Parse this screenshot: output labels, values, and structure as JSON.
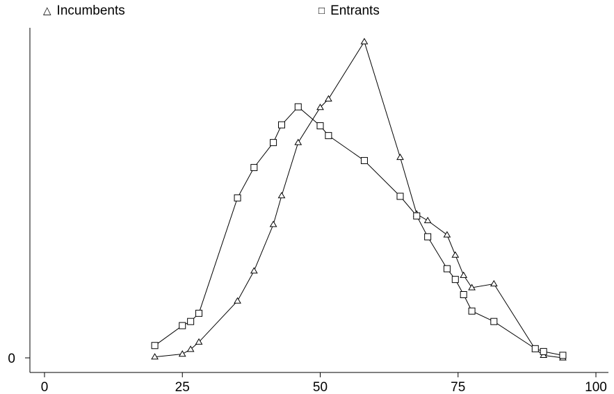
{
  "legend": [
    {
      "label": "Incumbents",
      "icon": "triangle-marker-icon"
    },
    {
      "label": "Entrants",
      "icon": "square-marker-icon"
    }
  ],
  "chart_data": {
    "type": "line",
    "title": "",
    "xlabel": "",
    "ylabel": "",
    "xlim": [
      0,
      100
    ],
    "ylim": [
      0,
      100
    ],
    "x_ticks": [
      0,
      25,
      50,
      75,
      100
    ],
    "x_tick_labels": [
      "0",
      "25",
      "50",
      "75",
      "100"
    ],
    "y_ticks": [
      0
    ],
    "y_tick_labels": [
      "0"
    ],
    "grid": false,
    "legend_position": "top",
    "series": [
      {
        "name": "Incumbents",
        "marker": "triangle",
        "color": "#000000",
        "points": [
          [
            20,
            0.3
          ],
          [
            25,
            1.2
          ],
          [
            26.5,
            2.7
          ],
          [
            28,
            5.0
          ],
          [
            35,
            18.0
          ],
          [
            38,
            27.5
          ],
          [
            41.5,
            42.2
          ],
          [
            43,
            51.3
          ],
          [
            46,
            68.1
          ],
          [
            50,
            79.2
          ],
          [
            51.5,
            81.9
          ],
          [
            58,
            100.0
          ],
          [
            64.5,
            63.4
          ],
          [
            67.5,
            45.5
          ],
          [
            69.5,
            43.4
          ],
          [
            73,
            38.9
          ],
          [
            74.5,
            32.5
          ],
          [
            76,
            26.1
          ],
          [
            77.5,
            22.2
          ],
          [
            81.5,
            23.4
          ],
          [
            89,
            2.7
          ],
          [
            90.5,
            0.8
          ],
          [
            94,
            0.0
          ]
        ]
      },
      {
        "name": "Entrants",
        "marker": "square",
        "color": "#000000",
        "points": [
          [
            20,
            3.9
          ],
          [
            25,
            10.2
          ],
          [
            26.5,
            11.5
          ],
          [
            28,
            14.1
          ],
          [
            35,
            50.6
          ],
          [
            38,
            60.2
          ],
          [
            41.5,
            68.1
          ],
          [
            43,
            73.7
          ],
          [
            46,
            79.4
          ],
          [
            50,
            73.4
          ],
          [
            51.5,
            70.3
          ],
          [
            58,
            62.4
          ],
          [
            64.5,
            51.1
          ],
          [
            67.5,
            44.9
          ],
          [
            69.5,
            38.3
          ],
          [
            73,
            28.2
          ],
          [
            74.5,
            24.8
          ],
          [
            76,
            20.0
          ],
          [
            77.5,
            14.8
          ],
          [
            81.5,
            11.5
          ],
          [
            89,
            2.9
          ],
          [
            90.5,
            2.0
          ],
          [
            94,
            0.8
          ]
        ]
      }
    ]
  }
}
